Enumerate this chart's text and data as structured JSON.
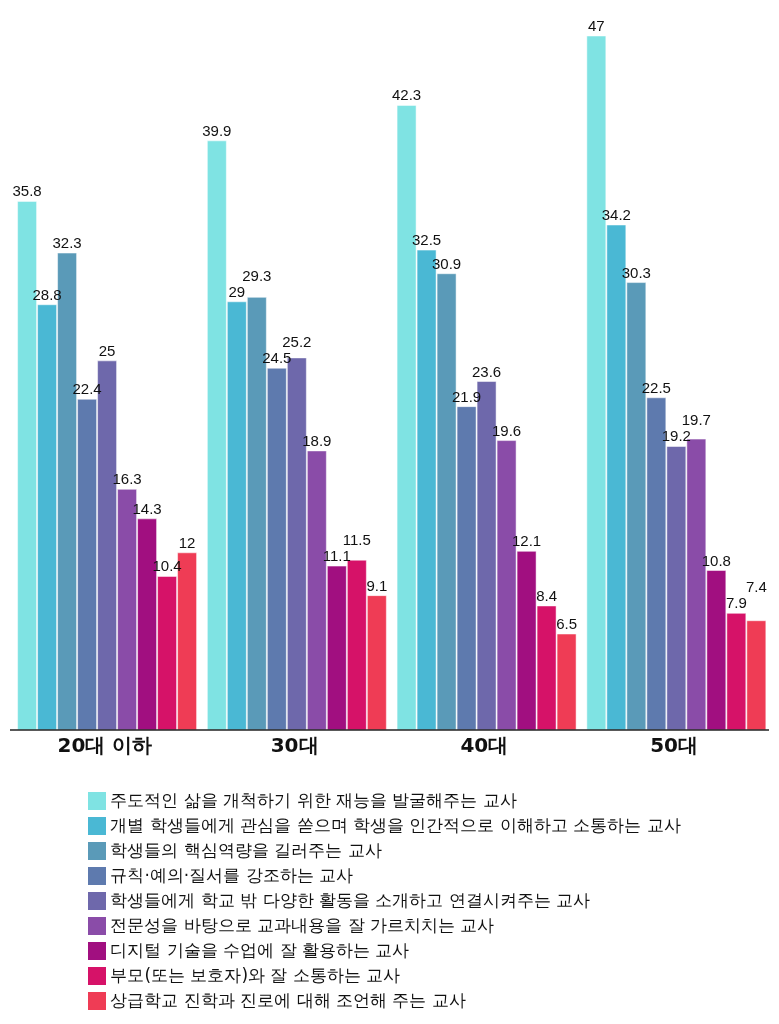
{
  "chart_data": {
    "type": "bar",
    "categories": [
      "20대 이하",
      "30대",
      "40대",
      "50대"
    ],
    "series": [
      {
        "name": "주도적인 삶을 개척하기 위한 재능을 발굴해주는 교사",
        "color": "#7fe3e3",
        "values": [
          35.8,
          39.9,
          42.3,
          47
        ]
      },
      {
        "name": "개별 학생들에게 관심을 쏟으며 학생을 인간적으로 이해하고 소통하는 교사",
        "color": "#4ab8d4",
        "values": [
          28.8,
          29,
          32.5,
          34.2
        ]
      },
      {
        "name": "학생들의 핵심역량을 길러주는 교사",
        "color": "#5a9ab8",
        "values": [
          32.3,
          29.3,
          30.9,
          30.3
        ]
      },
      {
        "name": "규칙·예의·질서를 강조하는 교사",
        "color": "#5e7aae",
        "values": [
          22.4,
          24.5,
          21.9,
          22.5
        ]
      },
      {
        "name": "학생들에게 학교 밖 다양한 활동을 소개하고 연결시켜주는 교사",
        "color": "#6e68ab",
        "values": [
          25,
          25.2,
          23.6,
          19.2
        ]
      },
      {
        "name": "전문성을 바탕으로 교과내용을 잘 가르치치는 교사",
        "color": "#8a4ca8",
        "values": [
          16.3,
          18.9,
          19.6,
          19.7
        ]
      },
      {
        "name": "디지털 기술을 수업에 잘 활용하는 교사",
        "color": "#a10f80",
        "values": [
          14.3,
          11.1,
          12.1,
          10.8
        ]
      },
      {
        "name": "부모(또는 보호자)와 잘 소통하는 교사",
        "color": "#d61268",
        "values": [
          10.4,
          11.5,
          8.4,
          7.9
        ]
      },
      {
        "name": "상급학교 진학과 진로에 대해 조언해 주는 교사",
        "color": "#ef3c55",
        "values": [
          12,
          9.1,
          6.5,
          7.4
        ]
      }
    ],
    "data_labels": true,
    "legend": "bottom",
    "grid": false
  }
}
